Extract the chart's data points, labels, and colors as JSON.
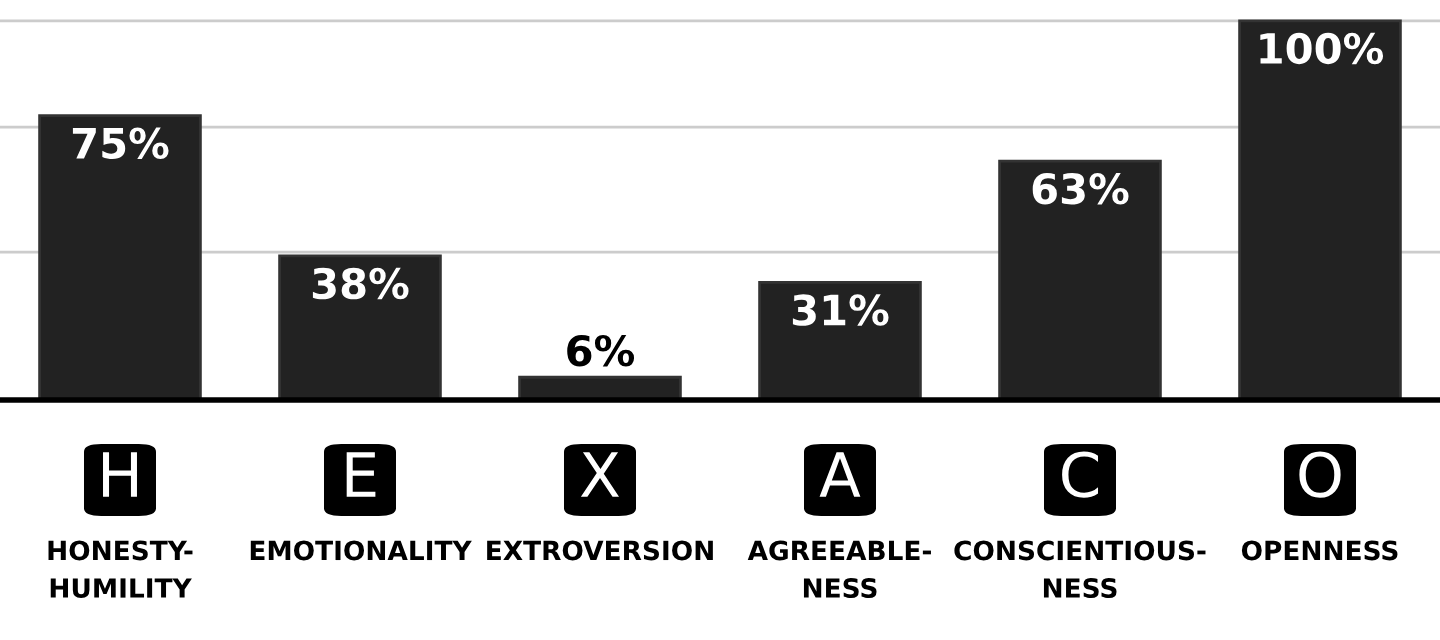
{
  "chart_data": {
    "type": "bar",
    "categories": [
      "HONESTY-\nHUMILITY",
      "EMOTIONALITY",
      "EXTROVERSION",
      "AGREEABLE-\nNESS",
      "CONSCIENTIOUS-\nNESS",
      "OPENNESS"
    ],
    "values": [
      75,
      38,
      6,
      31,
      63,
      100
    ],
    "value_labels": [
      "75%",
      "38%",
      "6%",
      "31%",
      "63%",
      "100%"
    ],
    "color": "#222222",
    "annotations": [
      "H",
      "E",
      "X",
      "A",
      "C",
      "O"
    ],
    "ref_lines": [
      {
        "axis": "y",
        "value": 39,
        "color": "#cccccc"
      },
      {
        "axis": "y",
        "value": 72,
        "color": "#cccccc"
      },
      {
        "axis": "y",
        "value": 100,
        "color": "#cccccc"
      }
    ],
    "tick_labels": "x"
  }
}
